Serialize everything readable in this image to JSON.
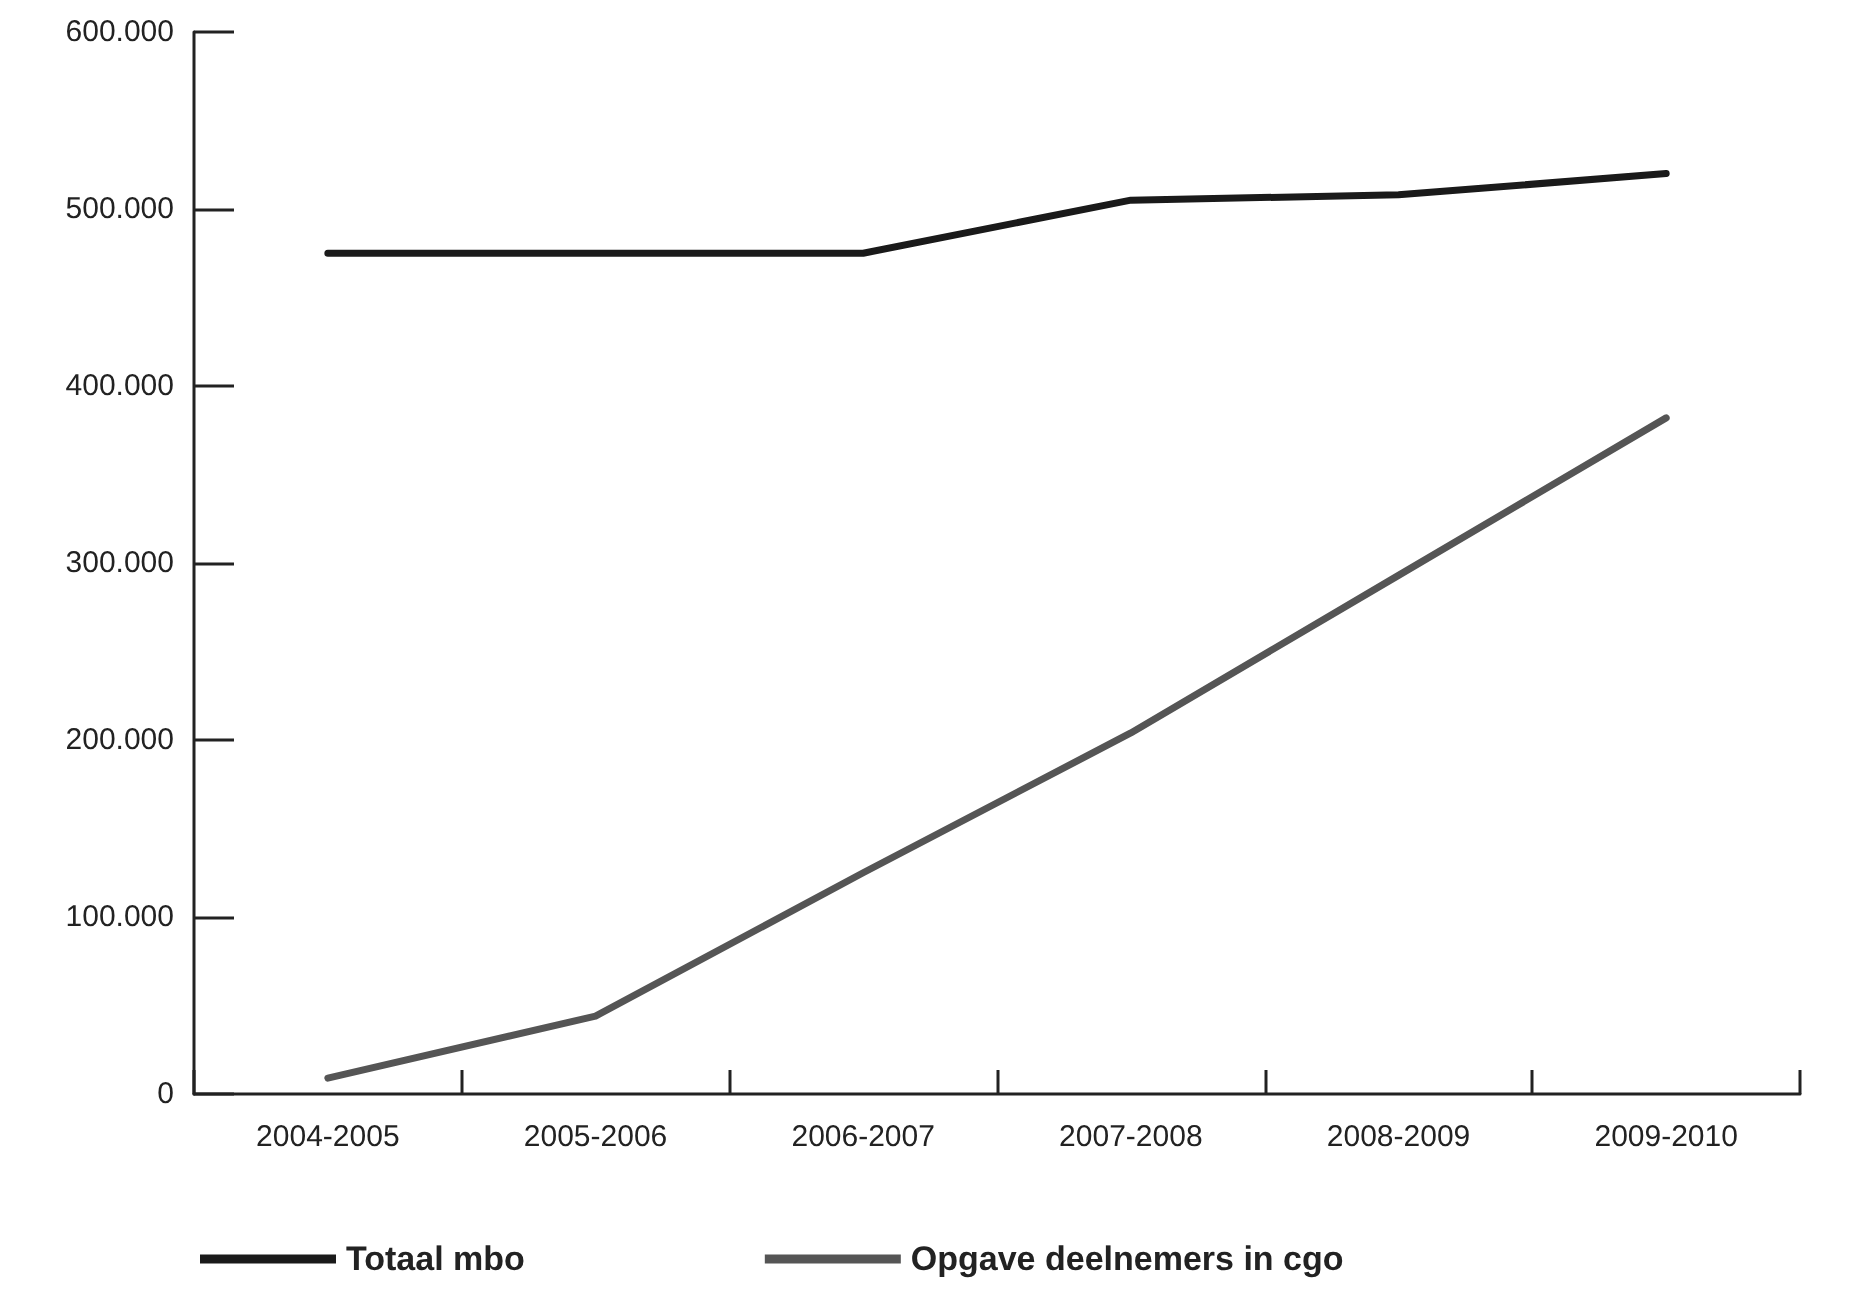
{
  "chart_data": {
    "type": "line",
    "categories": [
      "2004-2005",
      "2005-2006",
      "2006-2007",
      "2007-2008",
      "2008-2009",
      "2009-2010"
    ],
    "series": [
      {
        "name": "Totaal mbo",
        "color": "#1a1a1a",
        "values": [
          475000,
          475000,
          475000,
          505000,
          508000,
          520000
        ]
      },
      {
        "name": "Opgave deelnemers in cgo",
        "color": "#555555",
        "values": [
          9000,
          44000,
          125000,
          204000,
          293000,
          382000
        ]
      }
    ],
    "ylim": [
      0,
      600000
    ],
    "yticks": [
      {
        "value": 0,
        "label": "0"
      },
      {
        "value": 100000,
        "label": "100.000"
      },
      {
        "value": 200000,
        "label": "200.000"
      },
      {
        "value": 300000,
        "label": "300.000"
      },
      {
        "value": 400000,
        "label": "400.000"
      },
      {
        "value": 500000,
        "label": "500.000"
      },
      {
        "value": 600000,
        "label": "600.000"
      }
    ],
    "grid": false,
    "legend": "bottom",
    "marker": "none",
    "line_style": "solid"
  }
}
